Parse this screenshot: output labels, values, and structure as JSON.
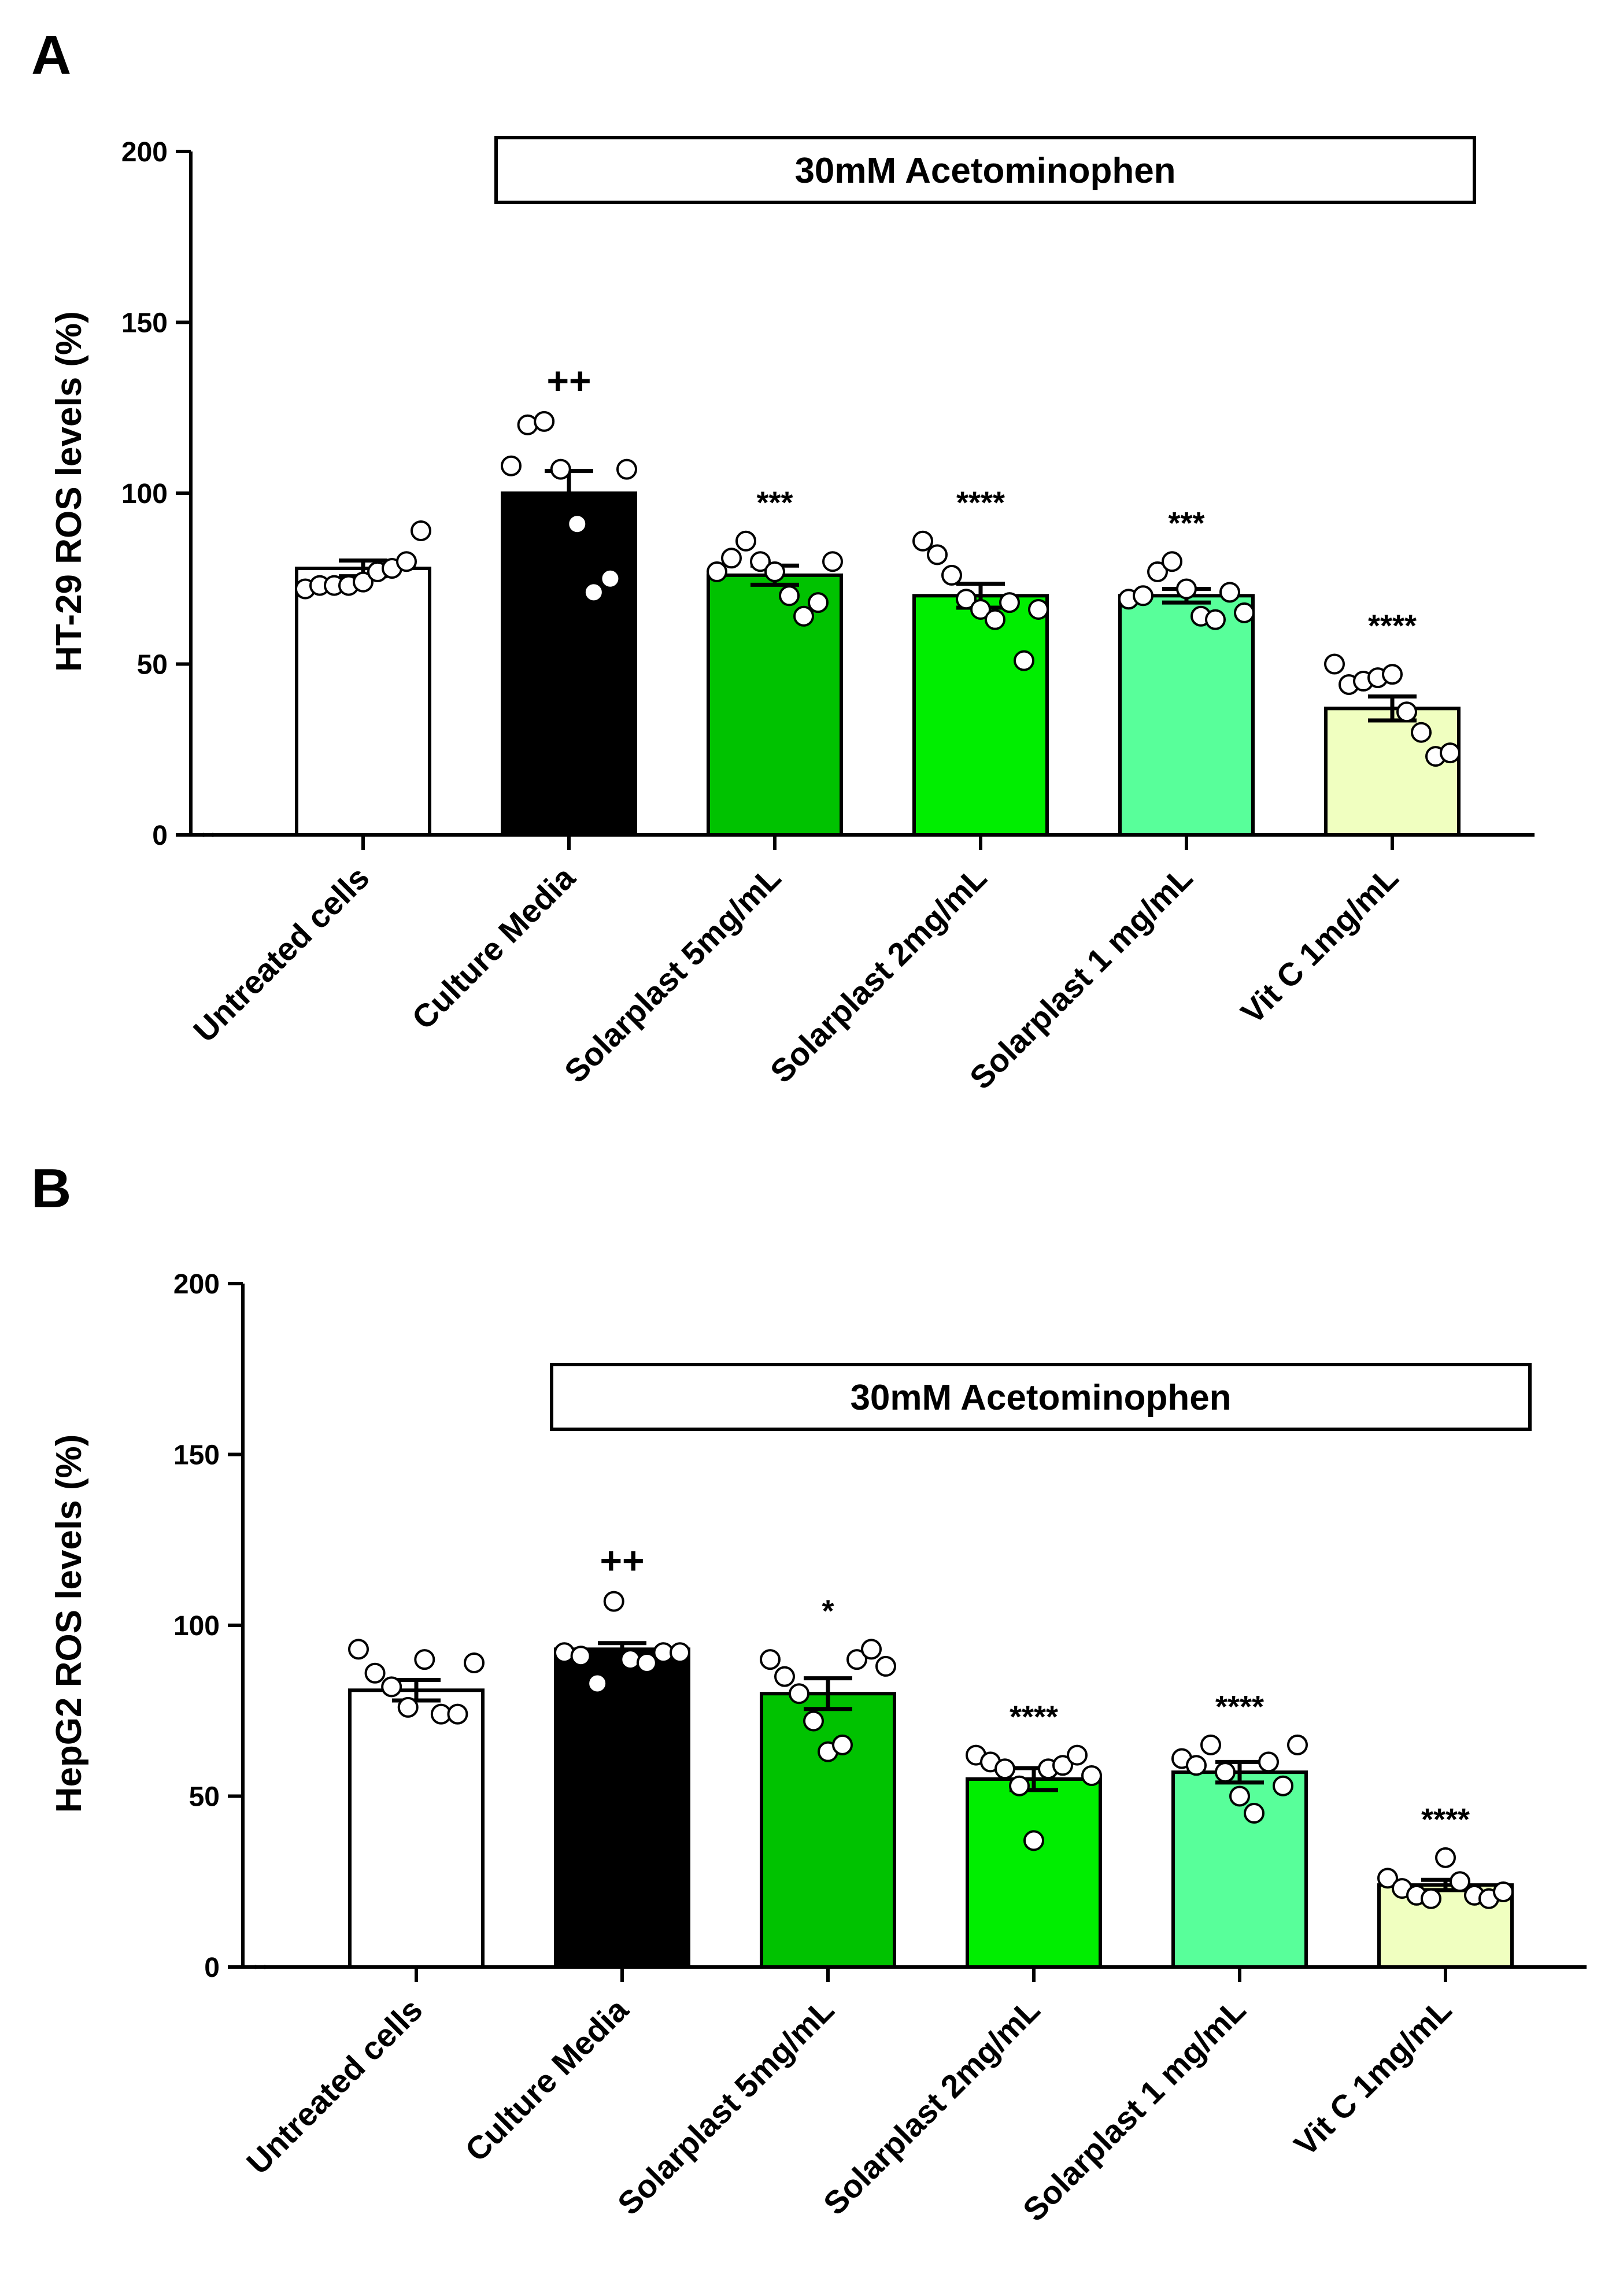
{
  "chart_data": [
    {
      "type": "bar",
      "panel": "A",
      "ylabel": "HT-29 ROS levels (%)",
      "ylim": [
        0,
        200
      ],
      "yticks": [
        "0",
        "50",
        "100",
        "150",
        "200"
      ],
      "categories": [
        "Untreated cells",
        "Culture Media",
        "Solarplast 5mg/mL",
        "Solarplast 2mg/mL",
        "Solarplast  1 mg/mL",
        "Vit C 1mg/mL"
      ],
      "values": [
        78,
        100,
        76,
        70,
        70,
        37
      ],
      "errors": [
        2.3,
        6.5,
        2.8,
        3.5,
        2.0,
        3.5
      ],
      "bar_colors": [
        "#ffffff",
        "#000000",
        "#00c200",
        "#00ee00",
        "#58ff9a",
        "#f0ffc0"
      ],
      "points": [
        [
          72,
          73,
          73,
          73,
          74,
          77,
          78,
          80,
          89
        ],
        [
          108,
          120,
          121,
          107,
          91,
          71,
          75,
          107
        ],
        [
          77,
          81,
          86,
          80,
          77,
          70,
          64,
          68,
          80
        ],
        [
          86,
          82,
          76,
          69,
          66,
          63,
          68,
          51,
          66
        ],
        [
          69,
          70,
          77,
          80,
          72,
          64,
          63,
          71,
          65
        ],
        [
          50,
          44,
          45,
          46,
          47,
          36,
          30,
          23,
          24
        ]
      ],
      "annotations": [
        "",
        "++",
        "***",
        "****",
        "***",
        "****"
      ],
      "banner": "30mM Acetominophen"
    },
    {
      "type": "bar",
      "panel": "B",
      "ylabel": "HepG2 ROS levels (%)",
      "ylim": [
        0,
        200
      ],
      "yticks": [
        "0",
        "50",
        "100",
        "150",
        "200"
      ],
      "categories": [
        "Untreated cells",
        "Culture Media",
        "Solarplast 5mg/mL",
        "Solarplast 2mg/mL",
        "Solarplast  1 mg/mL",
        "Vit C 1mg/mL"
      ],
      "values": [
        81,
        93,
        80,
        55,
        57,
        24
      ],
      "errors": [
        3.0,
        1.8,
        4.5,
        3.2,
        3.0,
        1.5
      ],
      "bar_colors": [
        "#ffffff",
        "#000000",
        "#00c200",
        "#00ee00",
        "#58ff9a",
        "#f0ffc0"
      ],
      "points": [
        [
          93,
          86,
          82,
          76,
          90,
          74,
          74,
          89
        ],
        [
          92,
          91,
          83,
          107,
          90,
          89,
          92,
          92
        ],
        [
          90,
          85,
          80,
          72,
          63,
          65,
          90,
          93,
          88
        ],
        [
          62,
          60,
          58,
          53,
          37,
          58,
          59,
          62,
          56
        ],
        [
          61,
          59,
          65,
          57,
          50,
          45,
          60,
          53,
          65
        ],
        [
          26,
          23,
          21,
          20,
          32,
          25,
          21,
          20,
          22
        ]
      ],
      "annotations": [
        "",
        "++",
        "*",
        "****",
        "****",
        "****"
      ],
      "banner": "30mM Acetominophen"
    }
  ]
}
